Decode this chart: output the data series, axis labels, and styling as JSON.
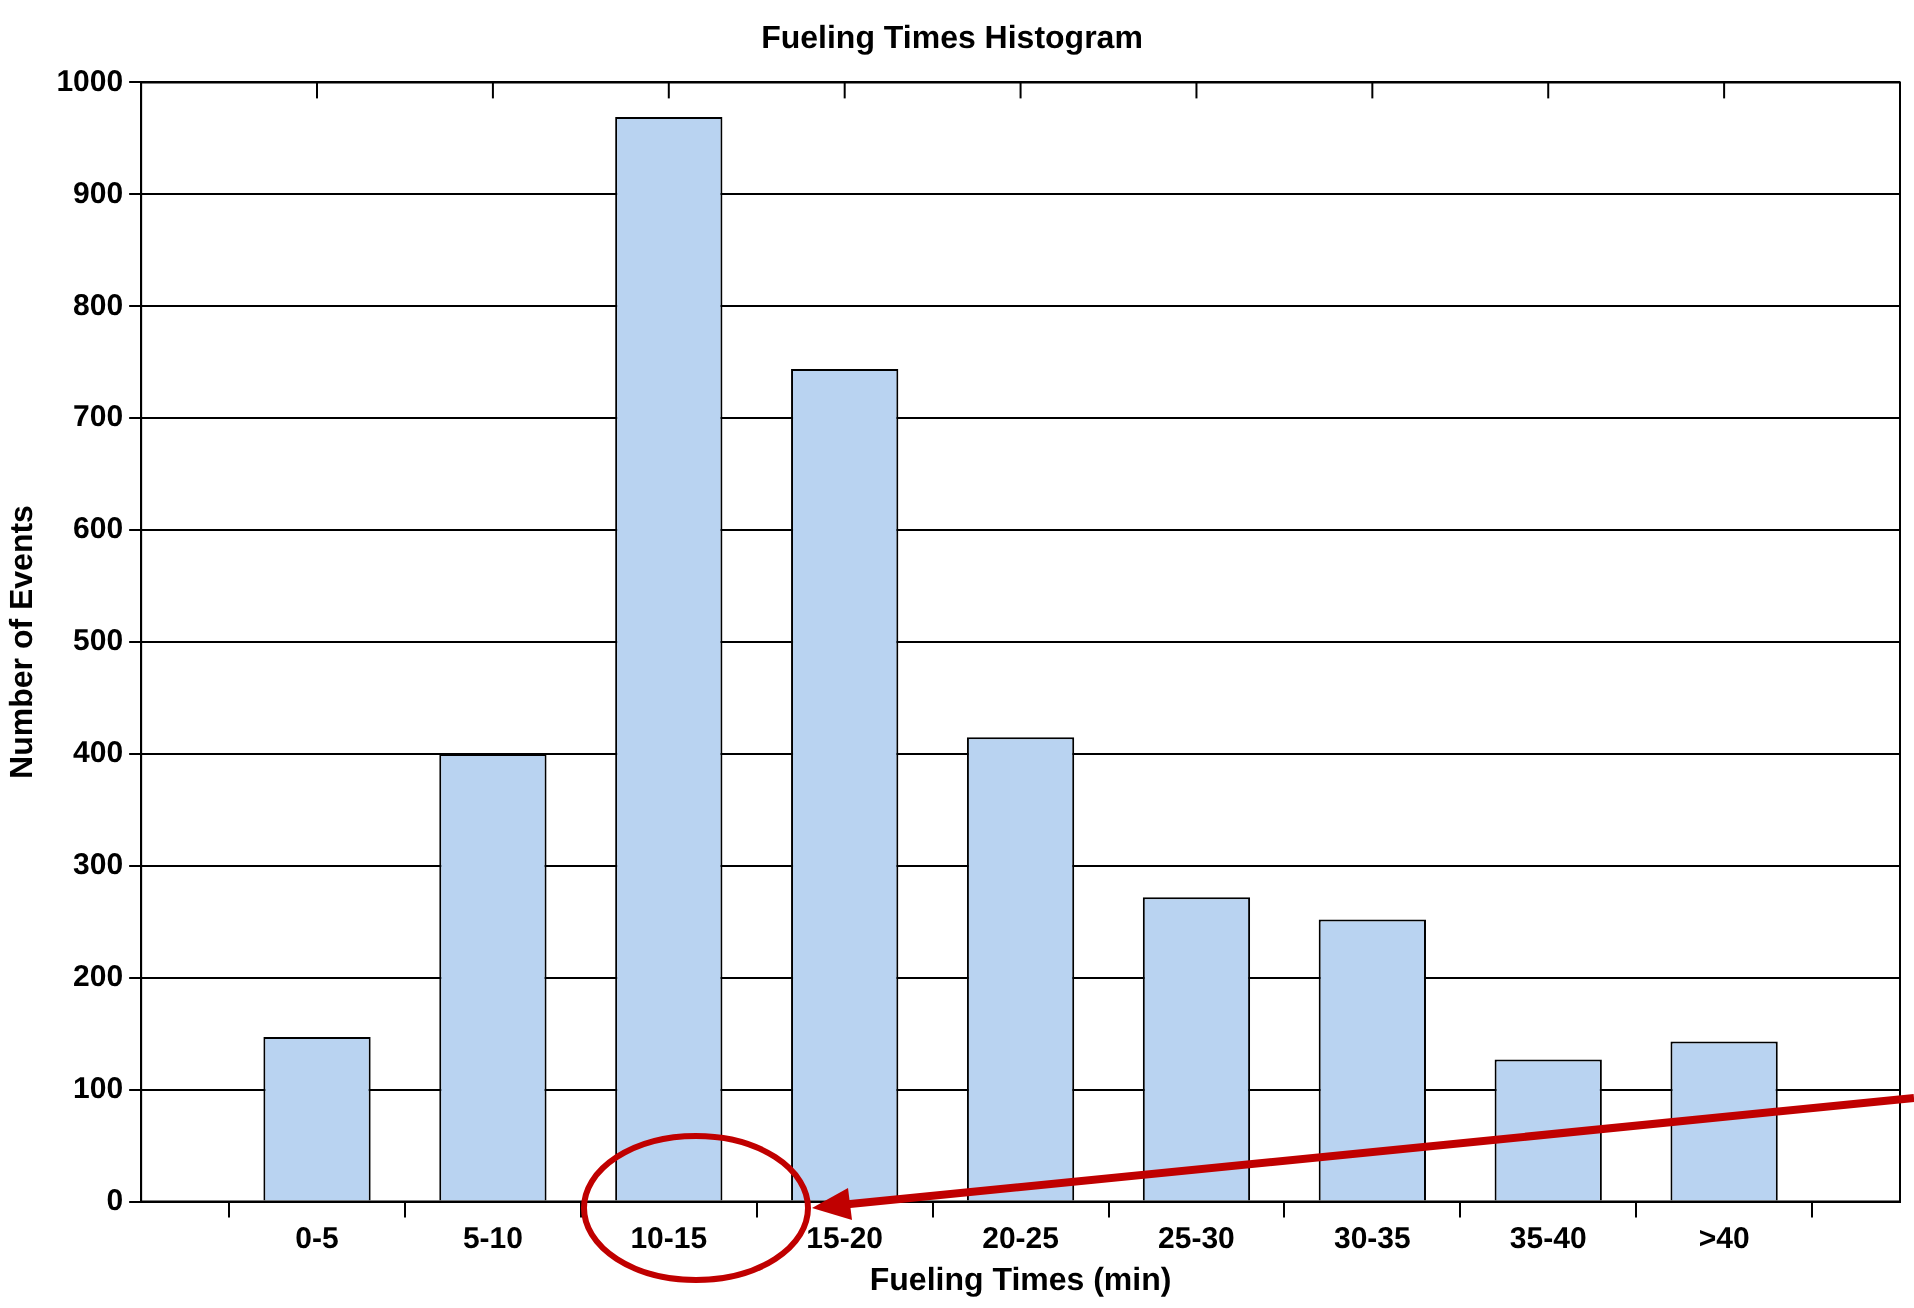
{
  "chart_data": {
    "type": "bar",
    "title": "Fueling Times Histogram",
    "xlabel": "Fueling Times (min)",
    "ylabel": "Number of Events",
    "categories": [
      "0-5",
      "5-10",
      "10-15",
      "15-20",
      "20-25",
      "25-30",
      "30-35",
      "35-40",
      ">40"
    ],
    "values": [
      147,
      400,
      969,
      744,
      415,
      272,
      252,
      127,
      143
    ],
    "color": "#b9d3f1",
    "ylim": [
      0,
      1000
    ],
    "yticks": [
      0,
      100,
      200,
      300,
      400,
      500,
      600,
      700,
      800,
      900,
      1000
    ],
    "grid": "y"
  }
}
